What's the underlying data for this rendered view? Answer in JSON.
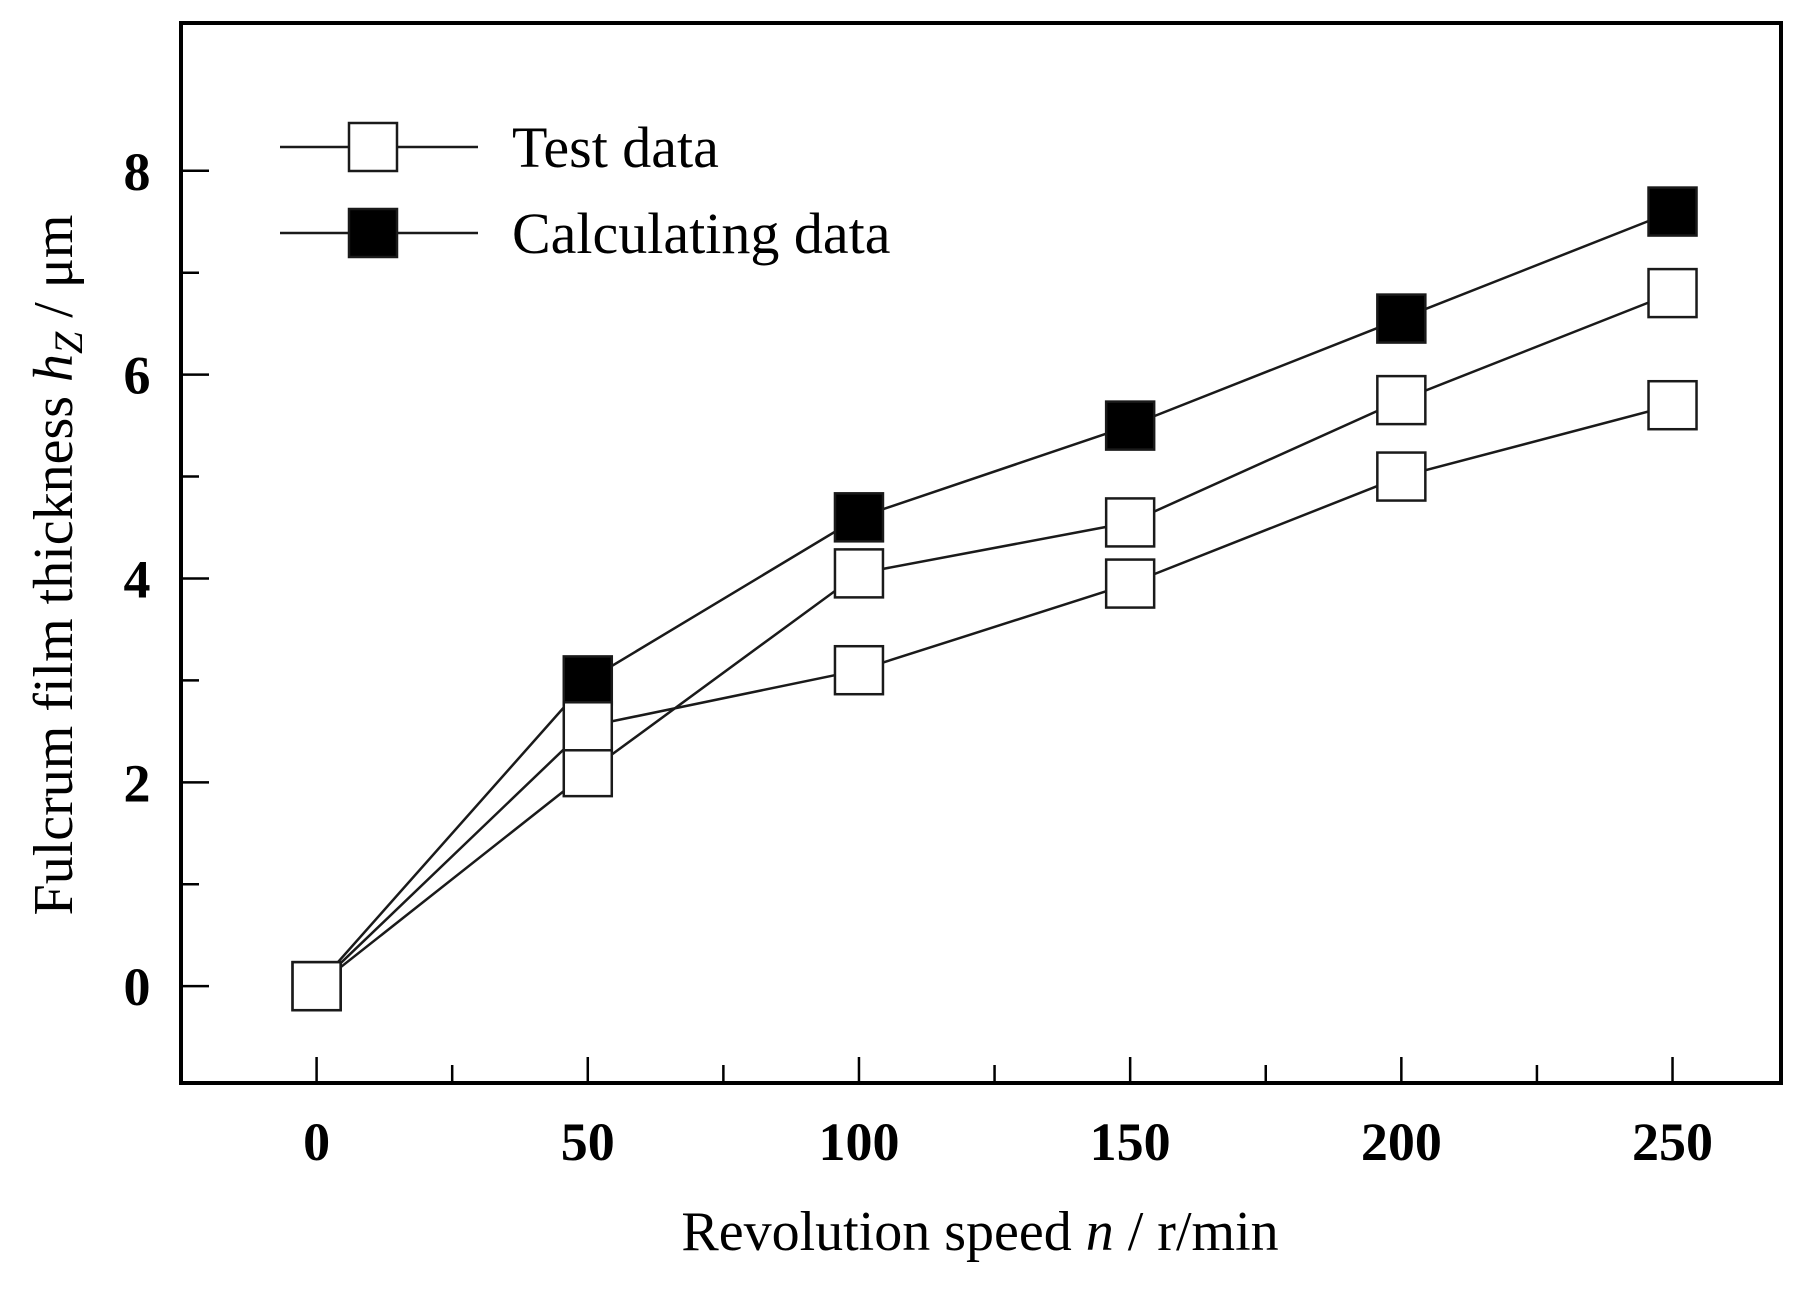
{
  "chart_data": {
    "type": "line",
    "title": "",
    "xlabel_parts": {
      "prefix": "Revolution speed ",
      "var": "n",
      "suffix": " / r/min"
    },
    "ylabel_parts": {
      "prefix": "Fulcrum film thickness ",
      "var": "h",
      "sub": "Z",
      "suffix": " / μm"
    },
    "xlim": [
      -25,
      270
    ],
    "ylim": [
      -0.95,
      9.45
    ],
    "x_ticks": [
      0,
      50,
      100,
      150,
      200,
      250
    ],
    "x_tick_labels": [
      "0",
      "50",
      "100",
      "150",
      "200",
      "250"
    ],
    "x_minor_ticks": [
      25,
      75,
      125,
      175,
      225
    ],
    "y_ticks": [
      0,
      2,
      4,
      6,
      8
    ],
    "y_tick_labels": [
      "0",
      "2",
      "4",
      "6",
      "8"
    ],
    "y_minor_ticks": [
      1,
      3,
      5,
      7
    ],
    "grid": false,
    "legend_position": "top-left",
    "legend": [
      {
        "label": "Test data",
        "marker": "open-square"
      },
      {
        "label": "Calculating data",
        "marker": "filled-square"
      }
    ],
    "series": [
      {
        "name": "Calculating data",
        "marker": "filled-square",
        "x": [
          0,
          50,
          100,
          150,
          200,
          250
        ],
        "values": [
          0,
          3.0,
          4.6,
          5.5,
          6.55,
          7.6
        ]
      },
      {
        "name": "Test data (upper)",
        "marker": "open-square",
        "x": [
          0,
          50,
          100,
          150,
          200,
          250
        ],
        "values": [
          0,
          2.1,
          4.05,
          4.55,
          5.75,
          6.8
        ]
      },
      {
        "name": "Test data (lower)",
        "marker": "open-square",
        "x": [
          0,
          50,
          100,
          150,
          200,
          250
        ],
        "values": [
          0,
          2.55,
          3.1,
          3.95,
          5.0,
          5.7
        ]
      }
    ],
    "colors": {
      "line": "#1a1a1a",
      "marker_fill": "#000000",
      "marker_open_fill": "#ffffff",
      "marker_edge": "#1a1a1a"
    }
  }
}
